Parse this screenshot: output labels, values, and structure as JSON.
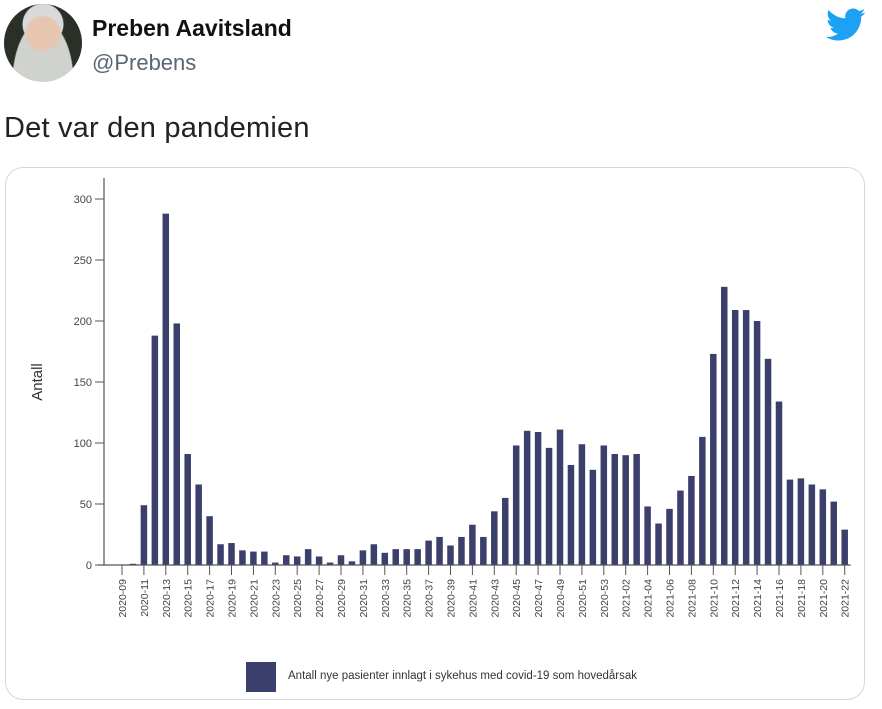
{
  "tweet": {
    "author_name": "Preben Aavitsland",
    "author_handle": "@Prebens",
    "text": "Det var den pandemien",
    "logo_icon": "twitter-bird-icon",
    "brand_color": "#1da1f2"
  },
  "chart_data": {
    "type": "bar",
    "title": "",
    "xlabel": "",
    "ylabel": "Antall",
    "ylim": [
      0,
      310
    ],
    "yticks": [
      0,
      50,
      100,
      150,
      200,
      250,
      300
    ],
    "bar_color": "#3b3f6b",
    "legend": {
      "position": "bottom",
      "entries": [
        "Antall nye pasienter innlagt i sykehus med covid-19 som hovedårsak"
      ]
    },
    "tick_labels": [
      "2020-09",
      "2020-11",
      "2020-13",
      "2020-15",
      "2020-17",
      "2020-19",
      "2020-21",
      "2020-23",
      "2020-25",
      "2020-27",
      "2020-29",
      "2020-31",
      "2020-33",
      "2020-35",
      "2020-37",
      "2020-39",
      "2020-41",
      "2020-43",
      "2020-45",
      "2020-47",
      "2020-49",
      "2020-51",
      "2020-53",
      "2021-02",
      "2021-04",
      "2021-06",
      "2021-08",
      "2021-10",
      "2021-12",
      "2021-14",
      "2021-16",
      "2021-18",
      "2021-20",
      "2021-22"
    ],
    "categories": [
      "2020-09",
      "2020-10",
      "2020-11",
      "2020-12",
      "2020-13",
      "2020-14",
      "2020-15",
      "2020-16",
      "2020-17",
      "2020-18",
      "2020-19",
      "2020-20",
      "2020-21",
      "2020-22",
      "2020-23",
      "2020-24",
      "2020-25",
      "2020-26",
      "2020-27",
      "2020-28",
      "2020-29",
      "2020-30",
      "2020-31",
      "2020-32",
      "2020-33",
      "2020-34",
      "2020-35",
      "2020-36",
      "2020-37",
      "2020-38",
      "2020-39",
      "2020-40",
      "2020-41",
      "2020-42",
      "2020-43",
      "2020-44",
      "2020-45",
      "2020-46",
      "2020-47",
      "2020-48",
      "2020-49",
      "2020-50",
      "2020-51",
      "2020-52",
      "2020-53",
      "2021-01",
      "2021-02",
      "2021-03",
      "2021-04",
      "2021-05",
      "2021-06",
      "2021-07",
      "2021-08",
      "2021-09",
      "2021-10",
      "2021-11",
      "2021-12",
      "2021-13",
      "2021-14",
      "2021-15",
      "2021-16",
      "2021-17",
      "2021-18",
      "2021-19",
      "2021-20",
      "2021-21",
      "2021-22"
    ],
    "values": [
      0,
      1,
      49,
      188,
      288,
      198,
      91,
      66,
      40,
      17,
      18,
      12,
      11,
      11,
      2,
      8,
      7,
      13,
      7,
      2,
      8,
      3,
      12,
      17,
      10,
      13,
      13,
      13,
      20,
      23,
      16,
      23,
      33,
      23,
      44,
      55,
      98,
      110,
      109,
      96,
      111,
      82,
      99,
      78,
      98,
      91,
      90,
      91,
      48,
      34,
      46,
      61,
      73,
      105,
      173,
      228,
      209,
      209,
      200,
      169,
      134,
      70,
      71,
      66,
      62,
      52,
      29
    ]
  }
}
